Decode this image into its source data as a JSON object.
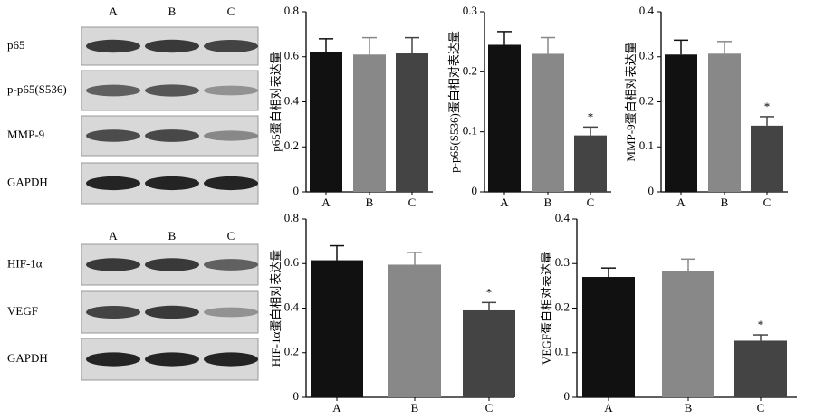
{
  "blots": [
    {
      "lanes": [
        "A",
        "B",
        "C"
      ],
      "rows": [
        "p65",
        "p-p65(S536)",
        "MMP-9",
        "GAPDH"
      ]
    },
    {
      "lanes": [
        "A",
        "B",
        "C"
      ],
      "rows": [
        "HIF-1α",
        "VEGF",
        "GAPDH"
      ]
    }
  ],
  "chart_data": [
    {
      "type": "bar",
      "y_label": "p65蛋白相对表达量",
      "categories": [
        "A",
        "B",
        "C"
      ],
      "values": [
        0.62,
        0.61,
        0.615
      ],
      "errors": [
        0.06,
        0.075,
        0.07
      ],
      "annotations": [
        null,
        null,
        null
      ],
      "colors": [
        "#111111",
        "#888888",
        "#444444"
      ],
      "ylim": [
        0,
        0.8
      ],
      "yticks": [
        0,
        0.2,
        0.4,
        0.6,
        0.8
      ]
    },
    {
      "type": "bar",
      "y_label": "p-p65(S536)蛋白相对表达量",
      "categories": [
        "A",
        "B",
        "C"
      ],
      "values": [
        0.245,
        0.23,
        0.094
      ],
      "errors": [
        0.022,
        0.027,
        0.014
      ],
      "annotations": [
        null,
        null,
        "*"
      ],
      "colors": [
        "#111111",
        "#888888",
        "#444444"
      ],
      "ylim": [
        0,
        0.3
      ],
      "yticks": [
        0,
        0.1,
        0.2,
        0.3
      ]
    },
    {
      "type": "bar",
      "y_label": "MMP-9蛋白相对表达量",
      "categories": [
        "A",
        "B",
        "C"
      ],
      "values": [
        0.305,
        0.307,
        0.147
      ],
      "errors": [
        0.032,
        0.027,
        0.02
      ],
      "annotations": [
        null,
        null,
        "*"
      ],
      "colors": [
        "#111111",
        "#888888",
        "#444444"
      ],
      "ylim": [
        0,
        0.4
      ],
      "yticks": [
        0,
        0.1,
        0.2,
        0.3,
        0.4
      ]
    },
    {
      "type": "bar",
      "y_label": "HIF-1α蛋白相对表达量",
      "categories": [
        "A",
        "B",
        "C"
      ],
      "values": [
        0.615,
        0.595,
        0.39
      ],
      "errors": [
        0.065,
        0.055,
        0.035
      ],
      "annotations": [
        null,
        null,
        "*"
      ],
      "colors": [
        "#111111",
        "#888888",
        "#444444"
      ],
      "ylim": [
        0,
        0.8
      ],
      "yticks": [
        0,
        0.2,
        0.4,
        0.6,
        0.8
      ]
    },
    {
      "type": "bar",
      "y_label": "VEGF蛋白相对表达量",
      "categories": [
        "A",
        "B",
        "C"
      ],
      "values": [
        0.27,
        0.283,
        0.127
      ],
      "errors": [
        0.02,
        0.027,
        0.013
      ],
      "annotations": [
        null,
        null,
        "*"
      ],
      "colors": [
        "#111111",
        "#888888",
        "#444444"
      ],
      "ylim": [
        0,
        0.4
      ],
      "yticks": [
        0,
        0.1,
        0.2,
        0.3,
        0.4
      ]
    }
  ]
}
